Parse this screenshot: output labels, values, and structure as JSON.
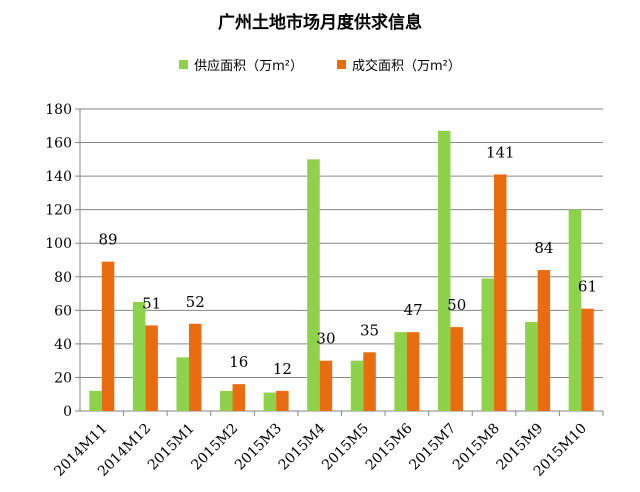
{
  "chart_data": {
    "type": "bar",
    "title": "广州土地市场月度供求信息",
    "categories": [
      "2014M11",
      "2014M12",
      "2015M1",
      "2015M2",
      "2015M3",
      "2015M4",
      "2015M5",
      "2015M6",
      "2015M7",
      "2015M8",
      "2015M9",
      "2015M10"
    ],
    "series": [
      {
        "name": "供应面积（万m²）",
        "color": "#8ED14B",
        "values": [
          12,
          65,
          32,
          12,
          11,
          150,
          30,
          47,
          167,
          79,
          53,
          120
        ]
      },
      {
        "name": "成交面积（万m²）",
        "color": "#E96D10",
        "values": [
          89,
          51,
          52,
          16,
          12,
          30,
          35,
          47,
          50,
          141,
          84,
          61
        ],
        "data_labels": [
          "89",
          "51",
          "52",
          "16",
          "12",
          "30",
          "35",
          "47",
          "50",
          "141",
          "84",
          "61"
        ]
      }
    ],
    "ylim": [
      0,
      180
    ],
    "yticks": [
      0,
      20,
      40,
      60,
      80,
      100,
      120,
      140,
      160,
      180
    ],
    "grid": true,
    "legend_position": "top"
  }
}
